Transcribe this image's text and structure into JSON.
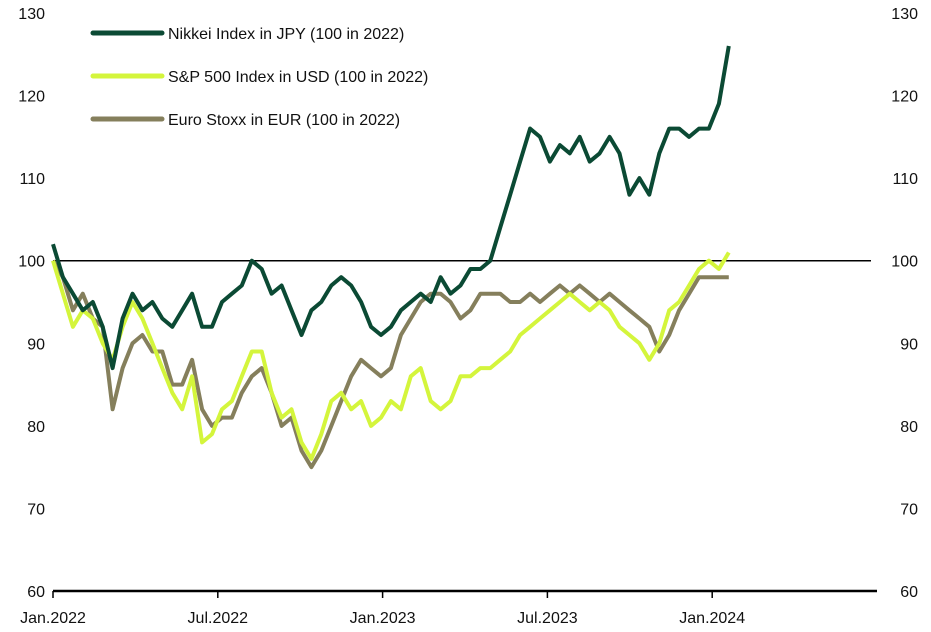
{
  "chart_data": {
    "type": "line",
    "title": "",
    "xlabel": "",
    "ylabel": "",
    "ylim": [
      60,
      130
    ],
    "yticks": [
      "60",
      "70",
      "80",
      "90",
      "100",
      "110",
      "120",
      "130"
    ],
    "x_axis": {
      "start": "2022-01-01",
      "end": "2024-07-01",
      "tick_labels": [
        "Jan.2022",
        "Jul.2022",
        "Jan.2023",
        "Jul.2023",
        "Jan.2024"
      ],
      "sample_step_days": 11
    },
    "reference_line": 100,
    "legend_position": "top-left",
    "series": [
      {
        "name": "Nikkei Index in JPY (100 in 2022)",
        "color": "#0b4a34",
        "values": [
          102,
          98,
          96,
          94,
          95,
          92,
          87,
          93,
          96,
          94,
          95,
          93,
          92,
          94,
          96,
          92,
          92,
          95,
          96,
          97,
          100,
          99,
          96,
          97,
          94,
          91,
          94,
          95,
          97,
          98,
          97,
          95,
          92,
          91,
          92,
          94,
          95,
          96,
          95,
          98,
          96,
          97,
          99,
          99,
          100,
          104,
          108,
          112,
          116,
          115,
          112,
          114,
          113,
          115,
          112,
          113,
          115,
          113,
          108,
          110,
          108,
          113,
          116,
          116,
          115,
          116,
          116,
          119,
          126
        ]
      },
      {
        "name": "S&P 500 Index in USD (100 in 2022)",
        "color": "#d4f53c",
        "values": [
          100,
          96,
          92,
          94,
          93,
          90,
          88,
          92,
          95,
          93,
          90,
          87,
          84,
          82,
          86,
          78,
          79,
          82,
          83,
          86,
          89,
          89,
          84,
          81,
          82,
          78,
          76,
          79,
          83,
          84,
          82,
          83,
          80,
          81,
          83,
          82,
          86,
          87,
          83,
          82,
          83,
          86,
          86,
          87,
          87,
          88,
          89,
          91,
          92,
          93,
          94,
          95,
          96,
          95,
          94,
          95,
          94,
          92,
          91,
          90,
          88,
          90,
          94,
          95,
          97,
          99,
          100,
          99,
          101
        ]
      },
      {
        "name": "Euro Stoxx in EUR (100 in 2022)",
        "color": "#857f5c",
        "values": [
          100,
          98,
          94,
          96,
          93,
          92,
          82,
          87,
          90,
          91,
          89,
          89,
          85,
          85,
          88,
          82,
          80,
          81,
          81,
          84,
          86,
          87,
          84,
          80,
          81,
          77,
          75,
          77,
          80,
          83,
          86,
          88,
          87,
          86,
          87,
          91,
          93,
          95,
          96,
          96,
          95,
          93,
          94,
          96,
          96,
          96,
          95,
          95,
          96,
          95,
          96,
          97,
          96,
          97,
          96,
          95,
          96,
          95,
          94,
          93,
          92,
          89,
          91,
          94,
          96,
          98,
          98,
          98,
          98
        ]
      }
    ]
  }
}
